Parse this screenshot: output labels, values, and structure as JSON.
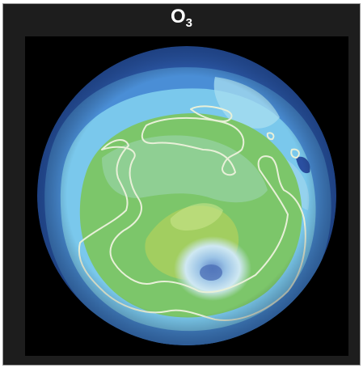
{
  "title": {
    "base": "O",
    "subscript": "3"
  },
  "colors": {
    "panel_background": "#1d1d1d",
    "map_background": "#000000",
    "outer_blue": "#2f5fb5",
    "mid_blue": "#4a8ed6",
    "light_blue": "#7ac8ec",
    "cyan": "#8fd9ef",
    "green": "#7cc66a",
    "yellow_green": "#a9cf5e",
    "hole_light": "#cfe8f2",
    "hole_center": "#5f86c8",
    "coastline": "#e8f0d8"
  },
  "map": {
    "projection": "orthographic",
    "view": "south-polar",
    "variable": "O3",
    "features": [
      "antarctica-coastline",
      "south-america-tip",
      "australia-edge",
      "ozone-hole"
    ]
  }
}
